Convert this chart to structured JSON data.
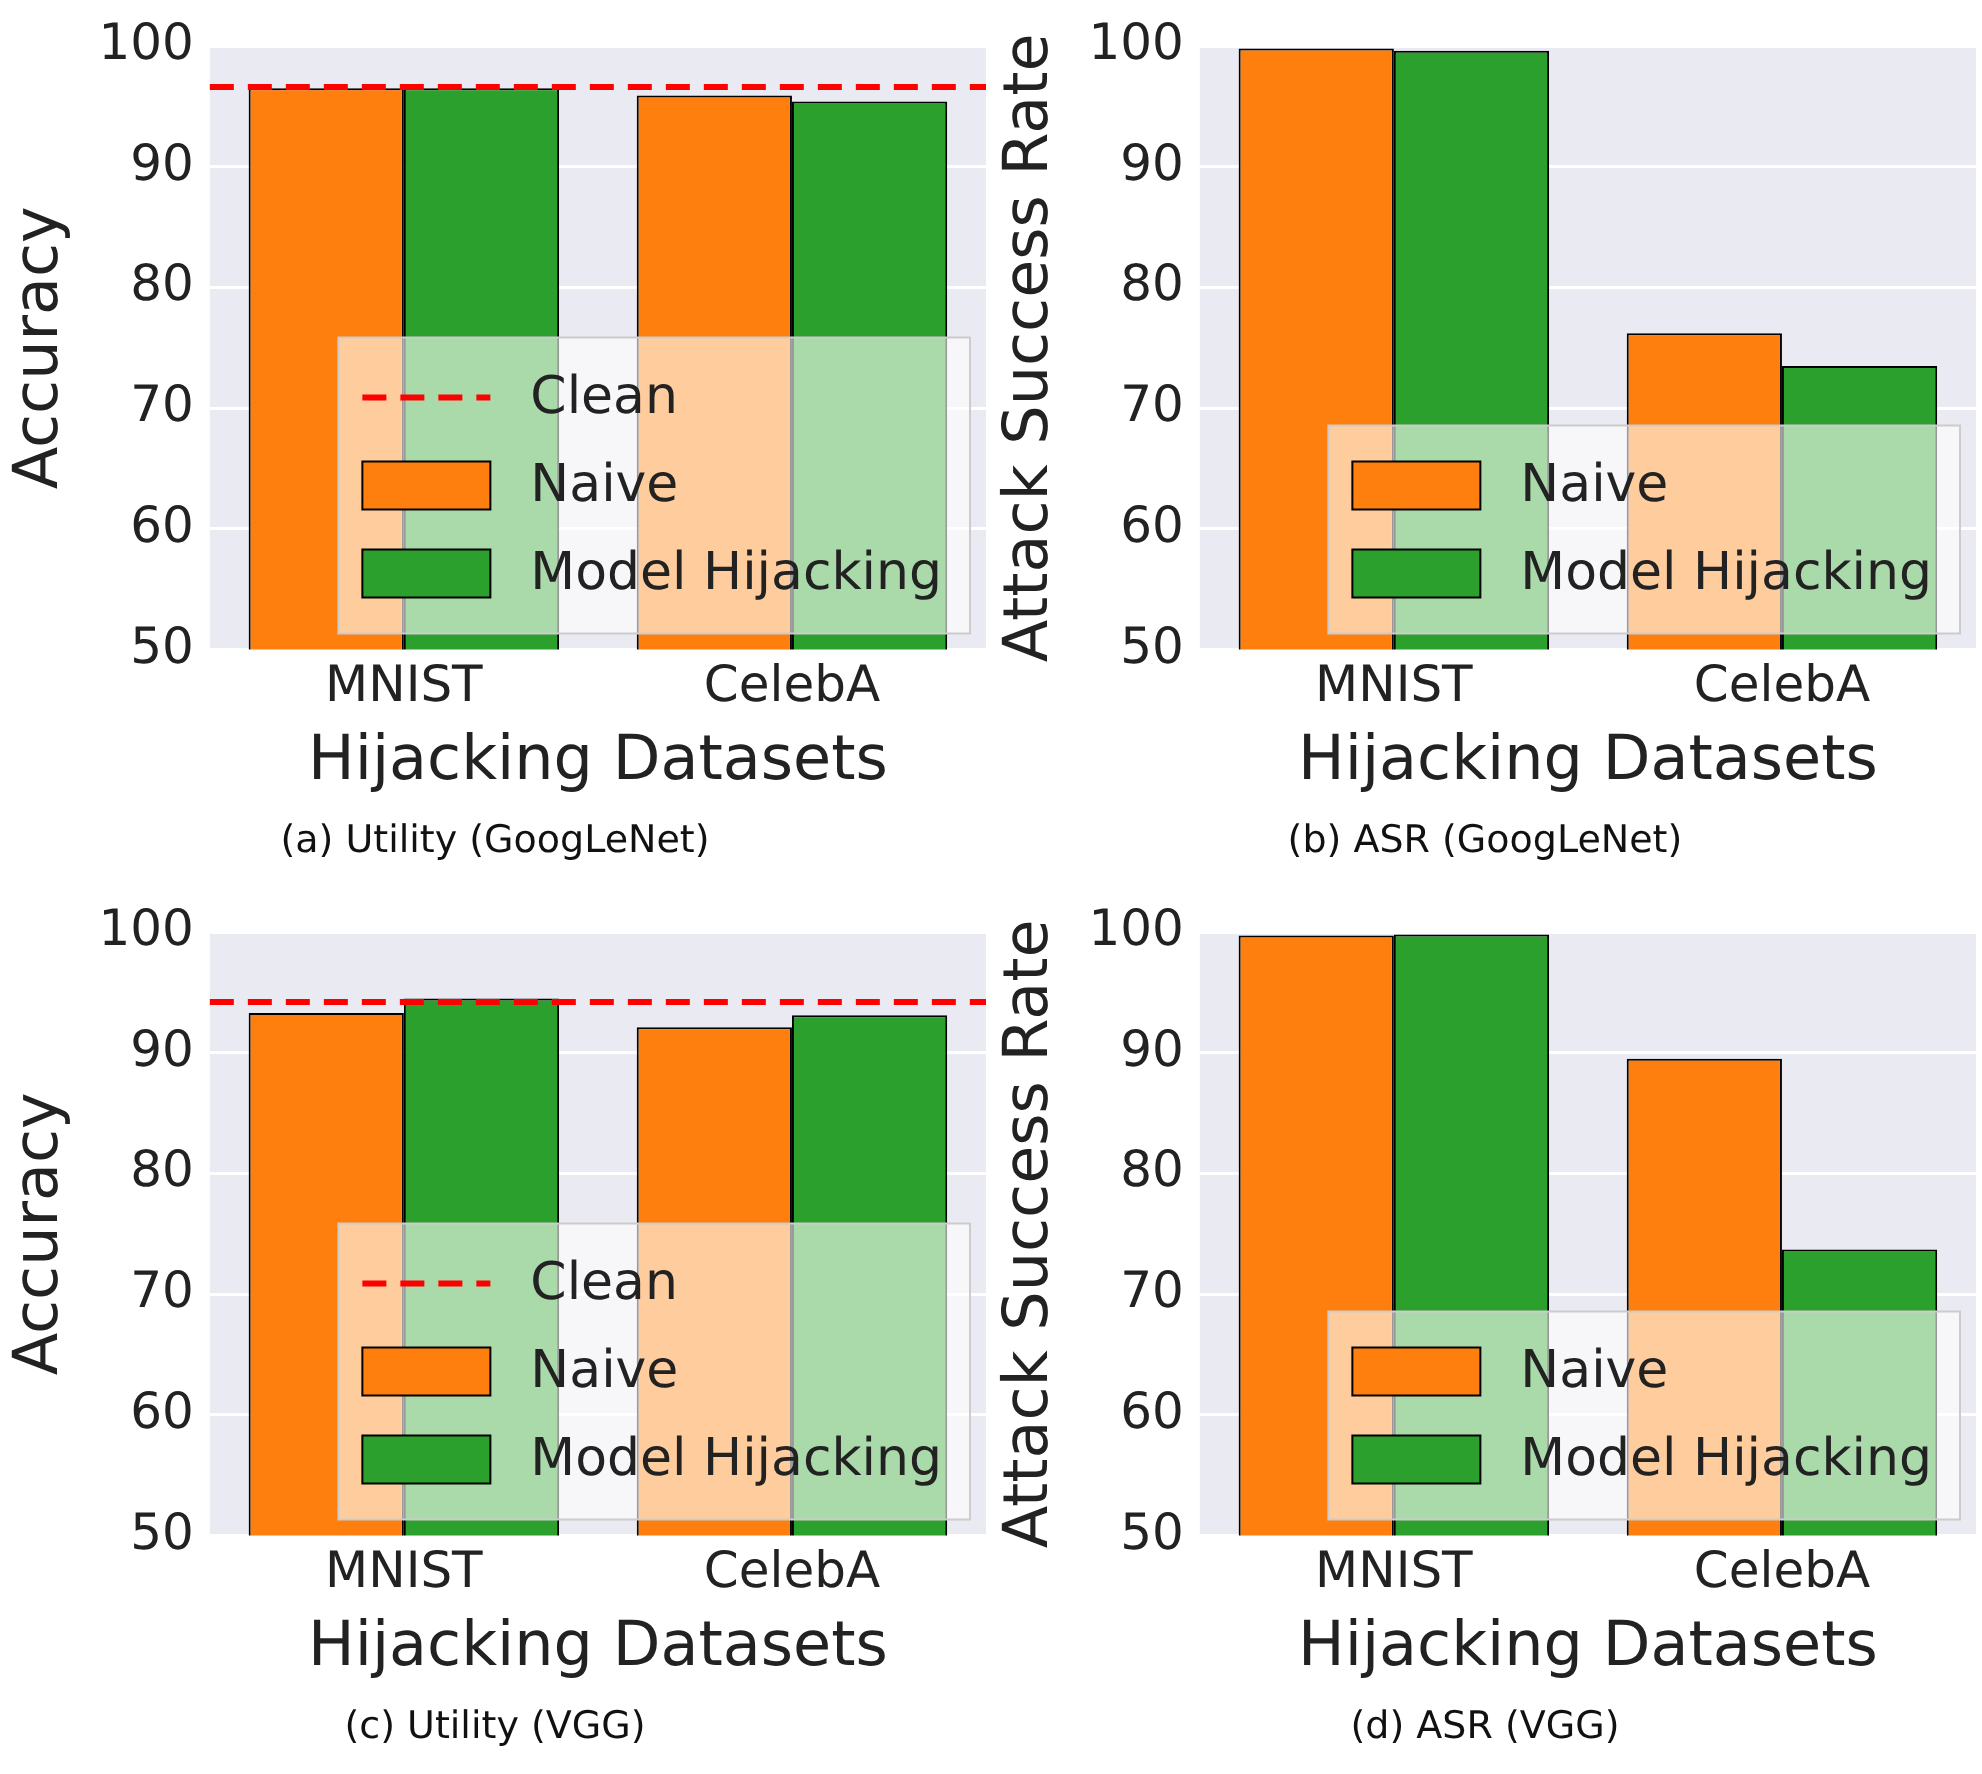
{
  "chart_data": [
    {
      "type": "bar",
      "categories": [
        "MNIST",
        "CelebA"
      ],
      "xlabel": "Hijacking Datasets",
      "ylabel": "Accuracy",
      "ylim": [
        50,
        100
      ],
      "yticks": [
        50,
        60,
        70,
        80,
        90,
        100
      ],
      "grid": "y",
      "legend": "bottom right",
      "series": [
        {
          "name": "Naive",
          "color": "#ff7f0e",
          "values": [
            96.5,
            95.9
          ]
        },
        {
          "name": "Model Hijacking",
          "color": "#2ca02c",
          "values": [
            96.5,
            95.4
          ]
        }
      ],
      "ref_lines": [
        {
          "axis": "y",
          "value": 96.6,
          "label": "Clean",
          "color": "#ff0000",
          "line_style": "dashed"
        }
      ],
      "annotations": [
        "(a) Utility (GoogLeNet)"
      ]
    },
    {
      "type": "bar",
      "categories": [
        "MNIST",
        "CelebA"
      ],
      "xlabel": "Hijacking Datasets",
      "ylabel": "Attack Success Rate",
      "ylim": [
        50,
        100
      ],
      "yticks": [
        50,
        60,
        70,
        80,
        90,
        100
      ],
      "grid": "y",
      "legend": "bottom right",
      "series": [
        {
          "name": "Naive",
          "color": "#ff7f0e",
          "values": [
            99.8,
            76.2
          ]
        },
        {
          "name": "Model Hijacking",
          "color": "#2ca02c",
          "values": [
            99.6,
            73.5
          ]
        }
      ],
      "annotations": [
        "(b) ASR (GoogLeNet)"
      ]
    },
    {
      "type": "bar",
      "categories": [
        "MNIST",
        "CelebA"
      ],
      "xlabel": "Hijacking Datasets",
      "ylabel": "Accuracy",
      "ylim": [
        50,
        100
      ],
      "yticks": [
        50,
        60,
        70,
        80,
        90,
        100
      ],
      "grid": "y",
      "legend": "bottom right",
      "series": [
        {
          "name": "Naive",
          "color": "#ff7f0e",
          "values": [
            93.3,
            92.1
          ]
        },
        {
          "name": "Model Hijacking",
          "color": "#2ca02c",
          "values": [
            94.5,
            93.1
          ]
        }
      ],
      "ref_lines": [
        {
          "axis": "y",
          "value": 94.2,
          "label": "Clean",
          "color": "#ff0000",
          "line_style": "dashed"
        }
      ],
      "annotations": [
        "(c) Utility (VGG)"
      ]
    },
    {
      "type": "bar",
      "categories": [
        "MNIST",
        "CelebA"
      ],
      "xlabel": "Hijacking Datasets",
      "ylabel": "Attack Success Rate",
      "ylim": [
        50,
        100
      ],
      "yticks": [
        50,
        60,
        70,
        80,
        90,
        100
      ],
      "grid": "y",
      "legend": "bottom right",
      "series": [
        {
          "name": "Naive",
          "color": "#ff7f0e",
          "values": [
            99.7,
            89.5
          ]
        },
        {
          "name": "Model Hijacking",
          "color": "#2ca02c",
          "values": [
            99.8,
            73.7
          ]
        }
      ],
      "annotations": [
        "(d) ASR (VGG)"
      ]
    }
  ]
}
